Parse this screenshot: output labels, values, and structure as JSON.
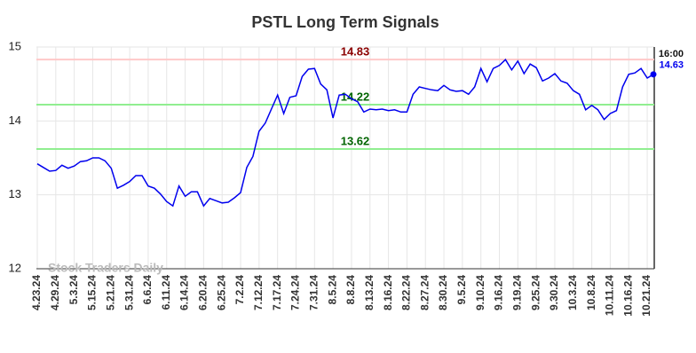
{
  "chart_data": {
    "type": "line",
    "title": "PSTL Long Term Signals",
    "watermark": "Stock Traders Daily",
    "categories": [
      "4.23.24",
      null,
      null,
      "4.29.24",
      null,
      null,
      "5.3.24",
      null,
      null,
      "5.15.24",
      null,
      null,
      "5.21.24",
      null,
      null,
      "5.31.24",
      null,
      null,
      "6.6.24",
      null,
      null,
      "6.11.24",
      null,
      null,
      "6.14.24",
      null,
      null,
      "6.20.24",
      null,
      null,
      "6.25.24",
      null,
      null,
      "7.2.24",
      null,
      null,
      "7.12.24",
      null,
      null,
      "7.17.24",
      null,
      null,
      "7.24.24",
      null,
      null,
      "7.31.24",
      null,
      null,
      "8.5.24",
      null,
      null,
      "8.8.24",
      null,
      null,
      "8.13.24",
      null,
      null,
      "8.16.24",
      null,
      null,
      "8.22.24",
      null,
      null,
      "8.27.24",
      null,
      null,
      "8.30.24",
      null,
      null,
      "9.5.24",
      null,
      null,
      "9.10.24",
      null,
      null,
      "9.16.24",
      null,
      null,
      "9.19.24",
      null,
      null,
      "9.25.24",
      null,
      null,
      "9.30.24",
      null,
      null,
      "10.3.24",
      null,
      null,
      "10.8.24",
      null,
      null,
      "10.11.24",
      null,
      null,
      "10.16.24",
      null,
      null,
      "10.21.24",
      null
    ],
    "series": [
      {
        "color": "#0000ee",
        "values": [
          13.42,
          13.37,
          13.32,
          13.33,
          13.4,
          13.36,
          13.39,
          13.45,
          13.46,
          13.5,
          13.5,
          13.46,
          13.36,
          13.09,
          13.13,
          13.18,
          13.26,
          13.26,
          13.12,
          13.09,
          13.01,
          12.91,
          12.85,
          13.12,
          12.98,
          13.04,
          13.04,
          12.85,
          12.95,
          12.92,
          12.89,
          12.9,
          12.96,
          13.03,
          13.37,
          13.52,
          13.86,
          13.97,
          14.16,
          14.35,
          14.1,
          14.32,
          14.34,
          14.6,
          14.7,
          14.71,
          14.5,
          14.42,
          14.04,
          14.35,
          14.36,
          14.3,
          14.26,
          14.12,
          14.16,
          14.15,
          14.16,
          14.14,
          14.15,
          14.12,
          14.12,
          14.36,
          14.46,
          14.44,
          14.42,
          14.41,
          14.48,
          14.42,
          14.4,
          14.41,
          14.36,
          14.46,
          14.71,
          14.53,
          14.71,
          14.75,
          14.83,
          14.69,
          14.81,
          14.64,
          14.77,
          14.72,
          14.54,
          14.58,
          14.64,
          14.54,
          14.51,
          14.41,
          14.36,
          14.15,
          14.21,
          14.15,
          14.02,
          14.1,
          14.14,
          14.46,
          14.63,
          14.65,
          14.71,
          14.58,
          14.63
        ]
      }
    ],
    "last_time": "16:00",
    "reference_lines": [
      {
        "value": 14.83,
        "color": "#ffc8c8",
        "label_color": "#8b0000"
      },
      {
        "value": 14.22,
        "color": "#90ee90",
        "label_color": "#006400"
      },
      {
        "value": 13.62,
        "color": "#90ee90",
        "label_color": "#006400"
      }
    ],
    "ylim": [
      12,
      15
    ],
    "yticks": [
      12,
      13,
      14,
      15
    ],
    "grid": true
  }
}
